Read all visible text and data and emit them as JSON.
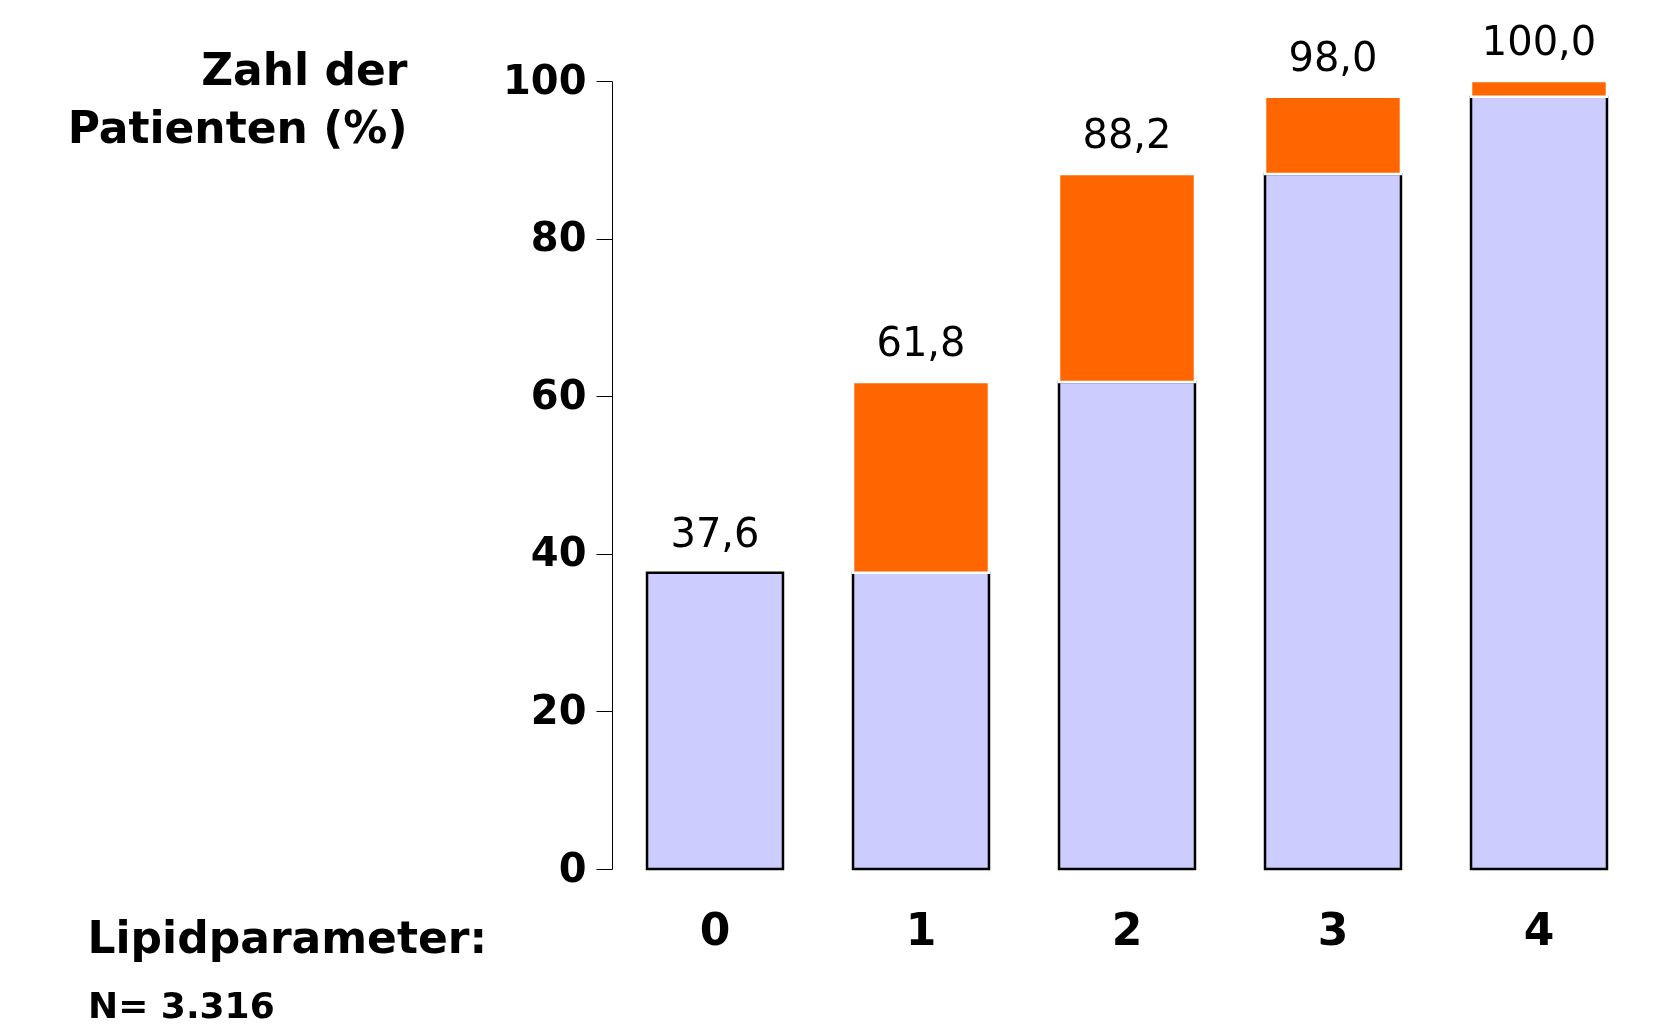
{
  "chart_data": {
    "type": "bar",
    "stacked": true,
    "categories": [
      "0",
      "1",
      "2",
      "3",
      "4"
    ],
    "series": [
      {
        "color": "#ccccff",
        "values": [
          37.6,
          37.6,
          61.8,
          88.2,
          98.0
        ]
      },
      {
        "color": "#ff6600",
        "values": [
          0,
          24.2,
          26.4,
          9.8,
          2.0
        ]
      }
    ],
    "totals": [
      "37,6",
      "61,8",
      "88,2",
      "98,0",
      "100,0"
    ],
    "ylim": [
      0,
      100
    ],
    "yticks": [
      0,
      20,
      40,
      60,
      80,
      100
    ],
    "ylabel": "Zahl der Patienten (%)",
    "xlabel": "Lipidparameter:",
    "annotations": [
      "N= 3.316"
    ],
    "grid": false,
    "legend": false
  }
}
